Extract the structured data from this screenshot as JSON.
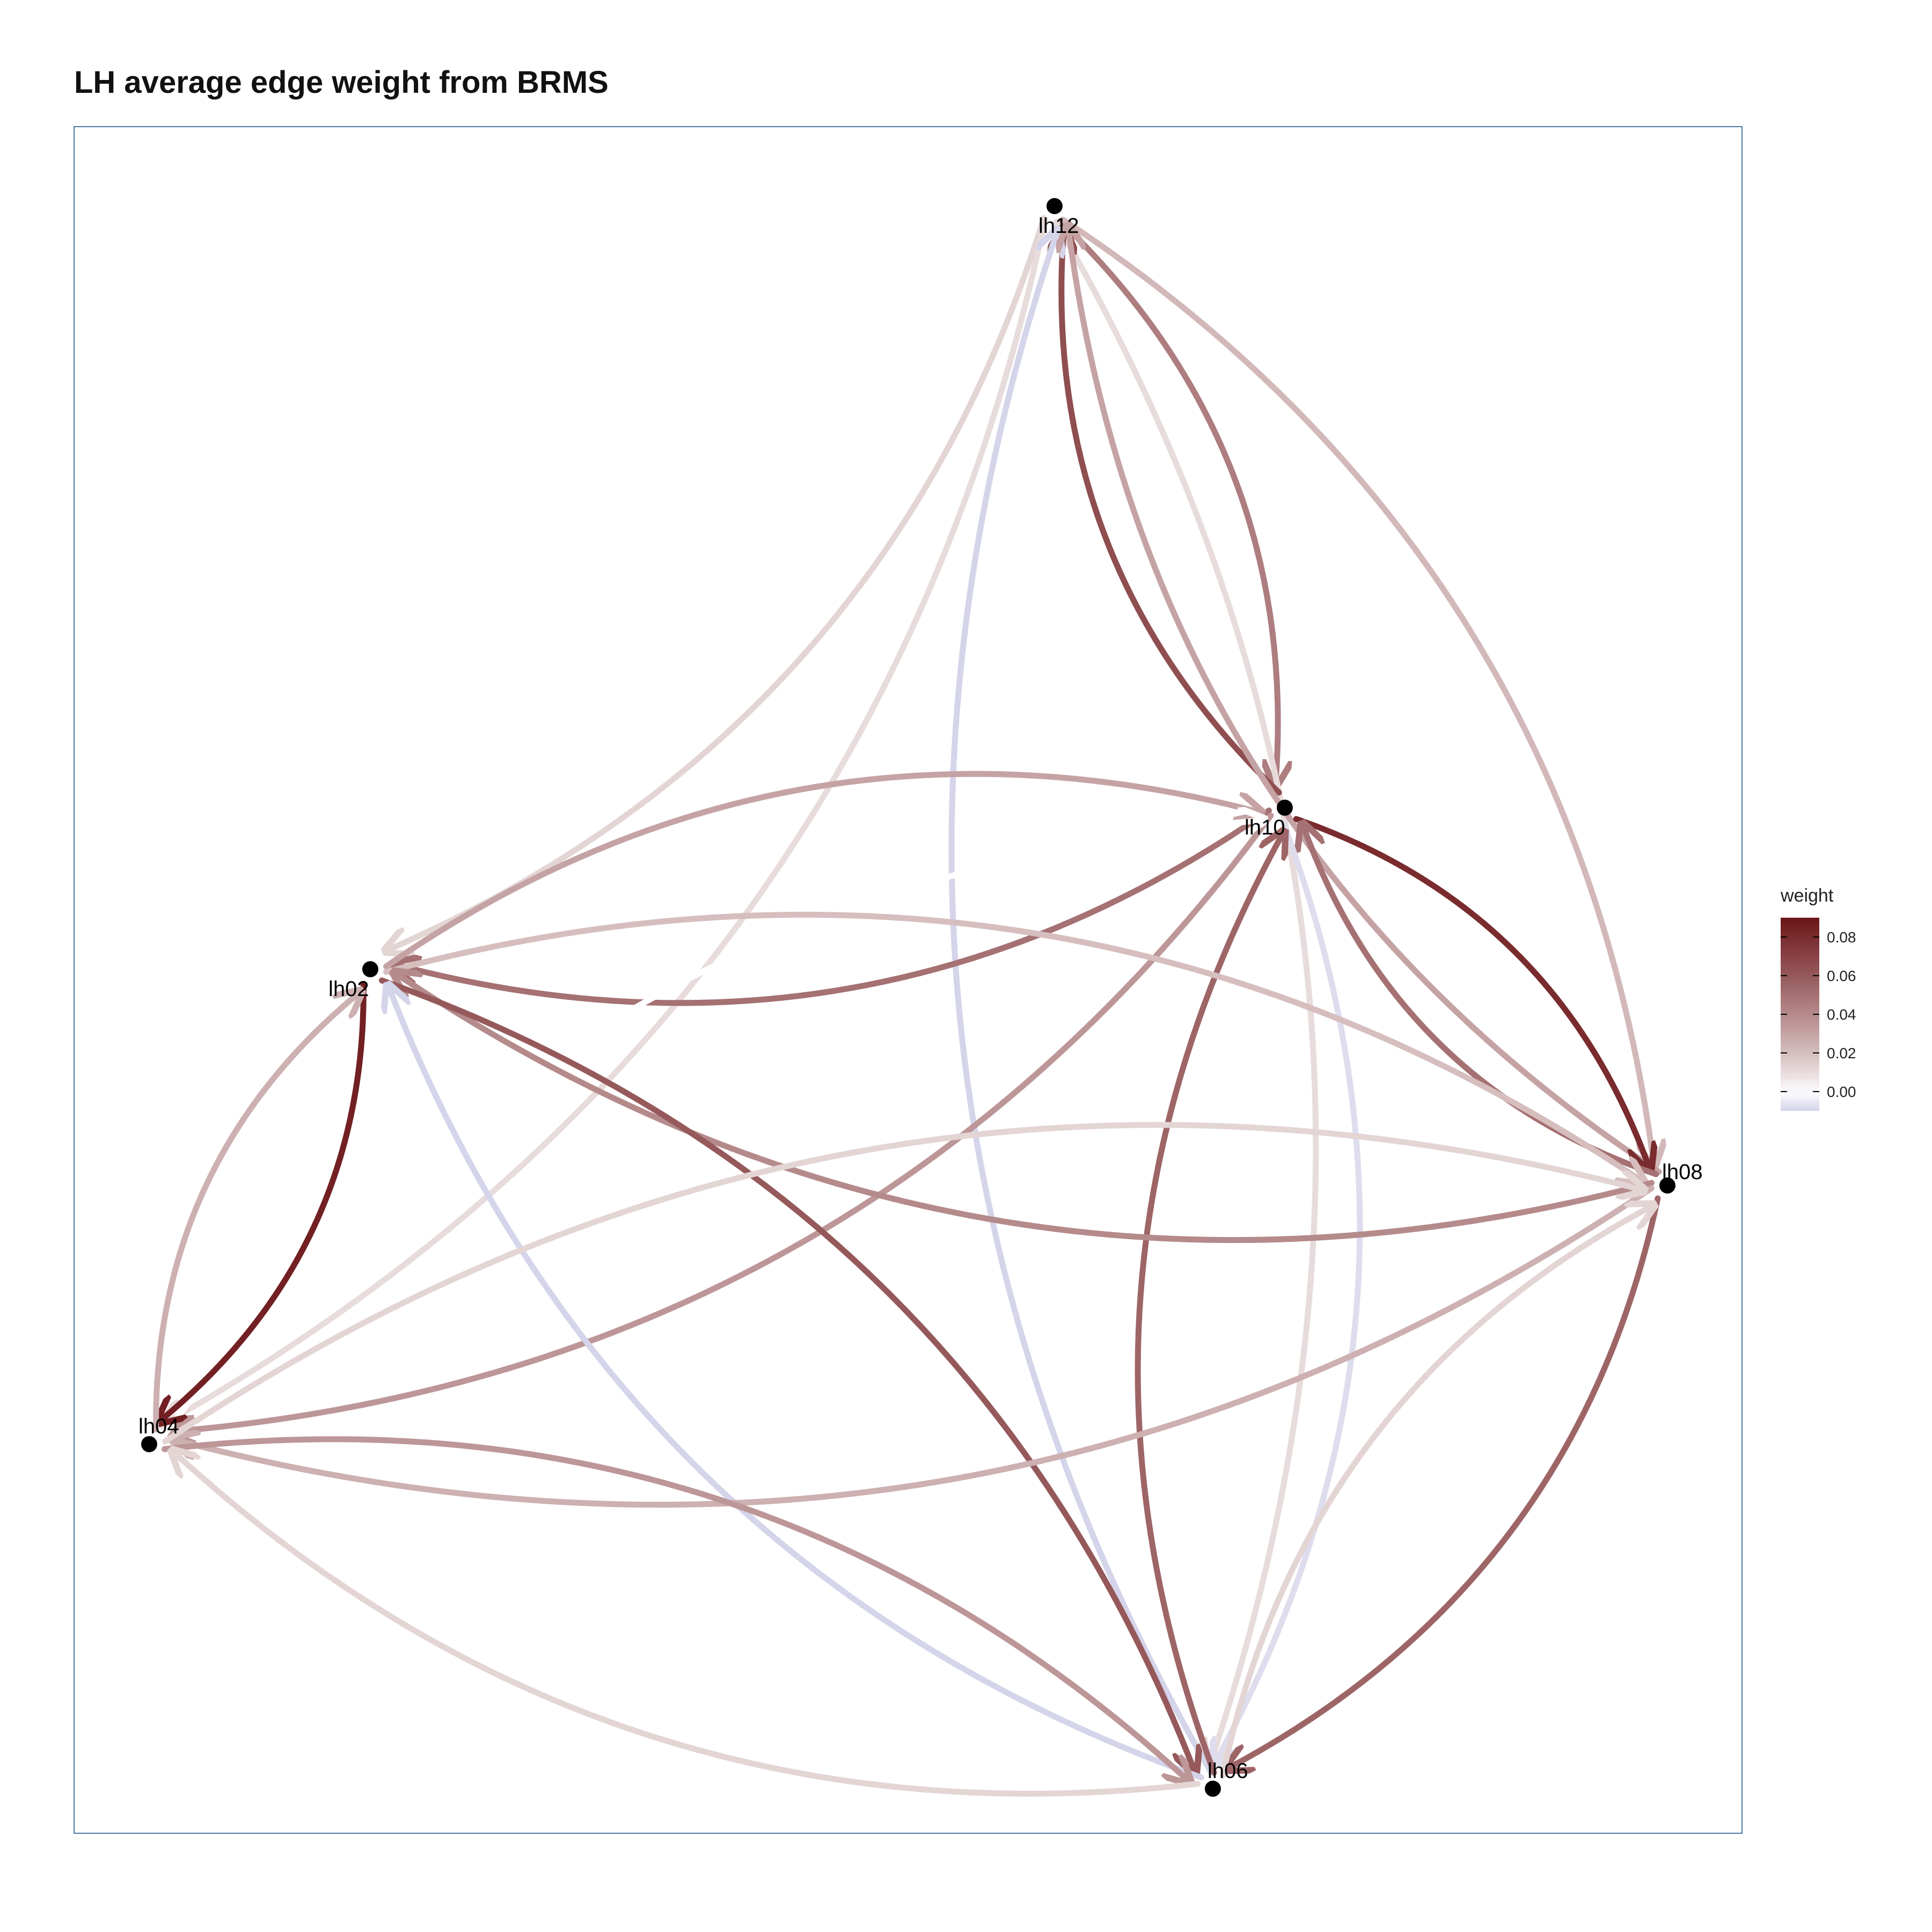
{
  "title": "LH average edge weight from BRMS",
  "nodes": [
    {
      "id": "lh12",
      "label": "lh12"
    },
    {
      "id": "lh10",
      "label": "lh10"
    },
    {
      "id": "lh02",
      "label": "lh02"
    },
    {
      "id": "lh08",
      "label": "lh08"
    },
    {
      "id": "lh04",
      "label": "lh04"
    },
    {
      "id": "lh06",
      "label": "lh06"
    }
  ],
  "edges": [
    {
      "from": "lh12",
      "to": "lh02",
      "weight": 0.012
    },
    {
      "from": "lh12",
      "to": "lh04",
      "weight": 0.01
    },
    {
      "from": "lh12",
      "to": "lh10",
      "weight": 0.045
    },
    {
      "from": "lh12",
      "to": "lh06",
      "weight": 0.01
    },
    {
      "from": "lh12",
      "to": "lh08",
      "weight": 0.022
    },
    {
      "from": "lh10",
      "to": "lh12",
      "weight": 0.065
    },
    {
      "from": "lh06",
      "to": "lh12",
      "weight": -0.01
    },
    {
      "from": "lh08",
      "to": "lh12",
      "weight": 0.03
    },
    {
      "from": "lh10",
      "to": "lh02",
      "weight": 0.05
    },
    {
      "from": "lh02",
      "to": "lh10",
      "weight": 0.03
    },
    {
      "from": "lh10",
      "to": "lh08",
      "weight": 0.08
    },
    {
      "from": "lh08",
      "to": "lh10",
      "weight": 0.05
    },
    {
      "from": "lh10",
      "to": "lh06",
      "weight": -0.008
    },
    {
      "from": "lh06",
      "to": "lh10",
      "weight": 0.055
    },
    {
      "from": "lh10",
      "to": "lh04",
      "weight": 0.035
    },
    {
      "from": "lh04",
      "to": "lh10",
      "weight": 0.0
    },
    {
      "from": "lh02",
      "to": "lh08",
      "weight": 0.02
    },
    {
      "from": "lh08",
      "to": "lh02",
      "weight": 0.04
    },
    {
      "from": "lh02",
      "to": "lh04",
      "weight": 0.085
    },
    {
      "from": "lh04",
      "to": "lh02",
      "weight": 0.025
    },
    {
      "from": "lh02",
      "to": "lh06",
      "weight": 0.06
    },
    {
      "from": "lh06",
      "to": "lh02",
      "weight": -0.01
    },
    {
      "from": "lh08",
      "to": "lh04",
      "weight": 0.025
    },
    {
      "from": "lh04",
      "to": "lh08",
      "weight": 0.012
    },
    {
      "from": "lh08",
      "to": "lh06",
      "weight": 0.055
    },
    {
      "from": "lh06",
      "to": "lh08",
      "weight": 0.012
    },
    {
      "from": "lh04",
      "to": "lh06",
      "weight": 0.035
    },
    {
      "from": "lh06",
      "to": "lh04",
      "weight": 0.012
    }
  ],
  "legend": {
    "title": "weight",
    "min": -0.01,
    "max": 0.09,
    "ticks": [
      "0.08",
      "0.06",
      "0.04",
      "0.02",
      "0.00"
    ],
    "tick_values": [
      0.08,
      0.06,
      0.04,
      0.02,
      0.0
    ],
    "colors": {
      "low": "#d4d4ea",
      "mid": "#ffffff",
      "high": "#6b1518"
    }
  },
  "colors": {
    "node": "#000000",
    "panel_border": "#4a7aa8"
  }
}
